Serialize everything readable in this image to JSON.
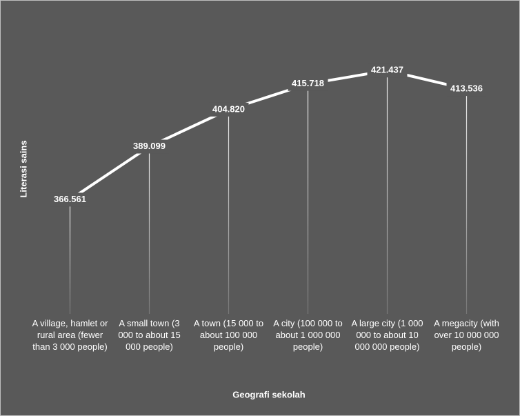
{
  "chart_data": {
    "type": "line",
    "x_label": "Geografi sekolah",
    "y_label": "Literasi sains",
    "categories": [
      "A village, hamlet or rural area (fewer than 3 000 people)",
      "A small town (3 000 to about 15 000 people)",
      "A town (15 000 to about 100 000 people)",
      "A city (100 000 to about 1 000 000 people)",
      "A large city (1 000 000 to about 10 000 000 people)",
      "A megacity (with over 10 000 000 people)"
    ],
    "values": [
      366.561,
      389.099,
      404.82,
      415.718,
      421.437,
      413.536
    ],
    "value_labels": [
      "366.561",
      "389.099",
      "404.820",
      "415.718",
      "421.437",
      "413.536"
    ],
    "color": "#ffffff",
    "ylim": [
      318,
      430
    ],
    "drop_lines": true
  }
}
